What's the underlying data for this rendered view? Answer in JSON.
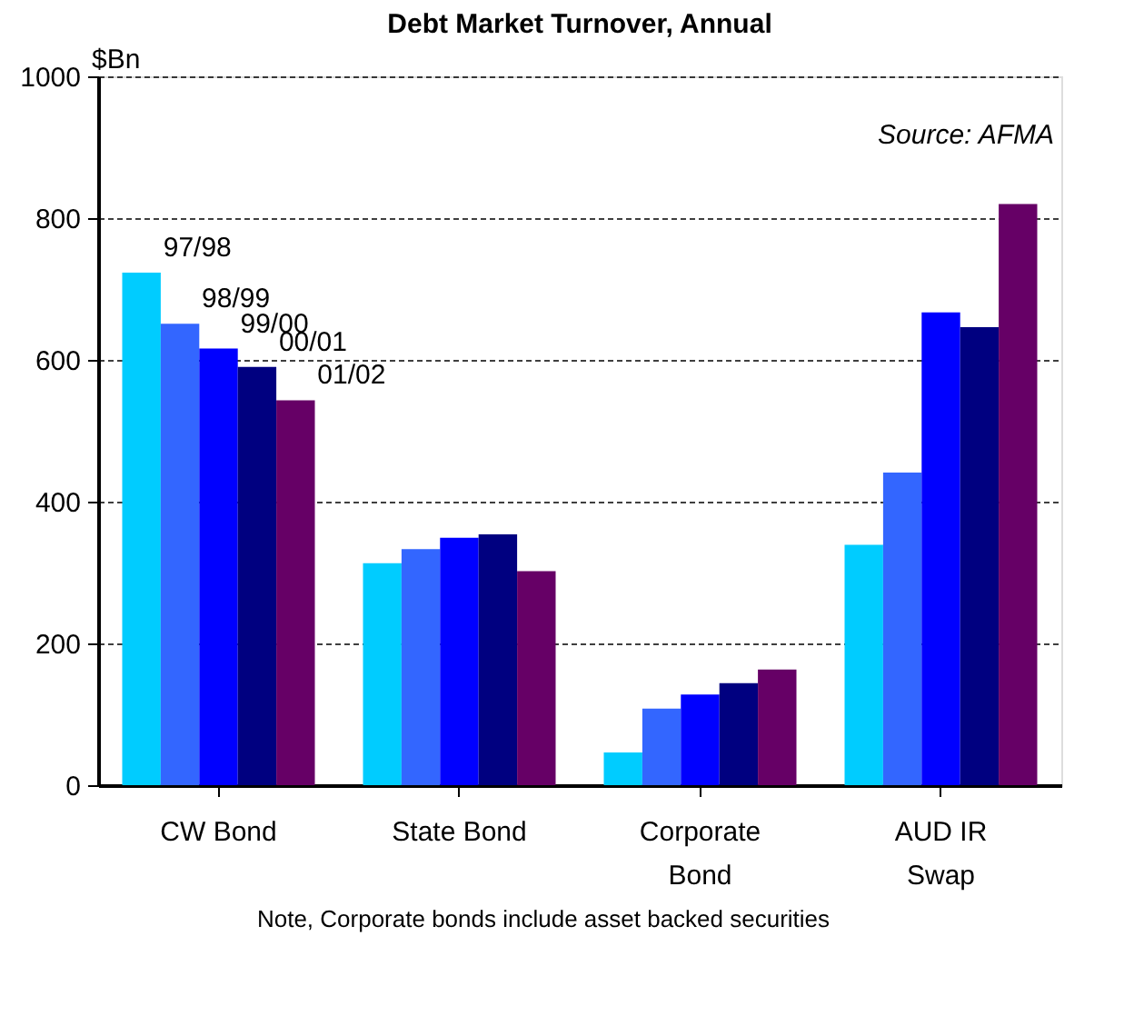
{
  "chart_data": {
    "type": "bar",
    "title": "Debt Market Turnover, Annual",
    "ylabel": "$Bn",
    "categories": [
      "CW Bond",
      "State Bond",
      "Corporate Bond",
      "AUD IR Swap"
    ],
    "series": [
      {
        "name": "97/98",
        "color": "#00ccff",
        "values": [
          723,
          313,
          46,
          339
        ]
      },
      {
        "name": "98/99",
        "color": "#3366ff",
        "values": [
          651,
          333,
          108,
          441
        ]
      },
      {
        "name": "99/00",
        "color": "#0000ff",
        "values": [
          616,
          349,
          128,
          667
        ]
      },
      {
        "name": "00/01",
        "color": "#000080",
        "values": [
          590,
          354,
          144,
          646
        ]
      },
      {
        "name": "01/02",
        "color": "#660066",
        "values": [
          543,
          302,
          163,
          820
        ]
      }
    ],
    "ylim": [
      0,
      1000
    ],
    "yticks": [
      0,
      200,
      400,
      600,
      800,
      1000
    ],
    "grid": "y",
    "annotations": [
      "Source: AFMA",
      "Note, Corporate bonds include asset backed securities"
    ]
  }
}
